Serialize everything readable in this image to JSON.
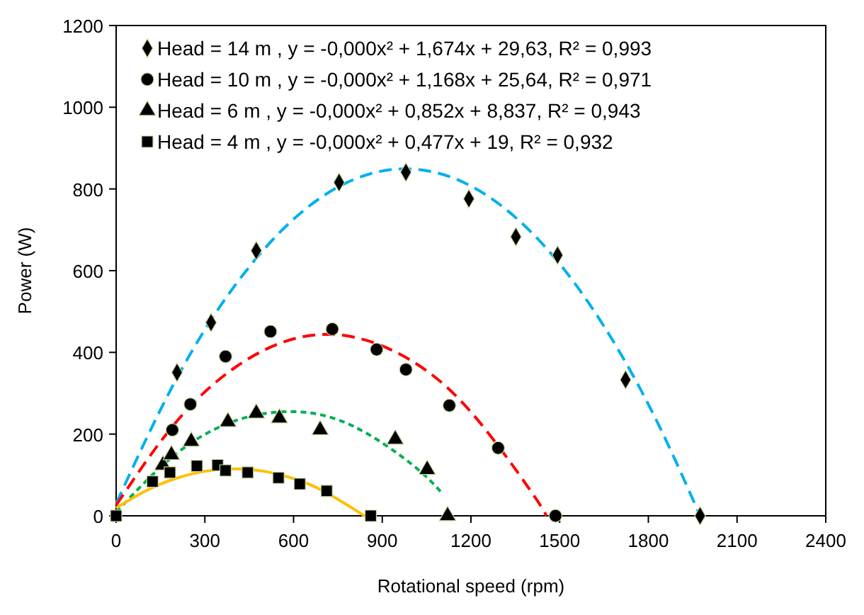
{
  "chart_data": {
    "type": "scatter",
    "xlabel": "Rotational speed (rpm)",
    "ylabel": "Power (W)",
    "xlim": [
      0,
      2400
    ],
    "xticks": [
      0,
      300,
      600,
      900,
      1200,
      1500,
      1800,
      2100,
      2400
    ],
    "ylim": [
      0,
      1200
    ],
    "yticks": [
      0,
      200,
      400,
      600,
      800,
      1000,
      1200
    ],
    "grid": false,
    "legend": "top left",
    "series": [
      {
        "name": "Head = 14 m , y = -0,000x² + 1,674x + 29,63, R² = 0,993",
        "marker": "diamond",
        "color": "#000000",
        "x": [
          206,
          321,
          474,
          754,
          980,
          1193,
          1352,
          1493,
          1723,
          1975
        ],
        "values": [
          351,
          473,
          649,
          816,
          841,
          776,
          683,
          638,
          333,
          0
        ]
      },
      {
        "name": "Head = 10 m  , y = -0,000x² + 1,168x + 25,64, R² = 0,971",
        "marker": "circle",
        "color": "#000000",
        "x": [
          190,
          251,
          370,
          522,
          731,
          881,
          980,
          1127,
          1292,
          1486
        ],
        "values": [
          210,
          273,
          390,
          451,
          457,
          407,
          358,
          270,
          166,
          0
        ]
      },
      {
        "name": "Head = 6 m  , y = -0,000x² + 0,852x + 8,837, R² = 0,943",
        "marker": "triangle",
        "color": "#000000",
        "x": [
          158,
          187,
          254,
          378,
          474,
          552,
          690,
          944,
          1052,
          1121
        ],
        "values": [
          124,
          149,
          182,
          230,
          251,
          239,
          210,
          187,
          113,
          0
        ]
      },
      {
        "name": "Head = 4 m , y = -0,000x² + 0,477x + 19, R² = 0,932",
        "marker": "square",
        "color": "#000000",
        "x": [
          0,
          123,
          182,
          273,
          343,
          370,
          445,
          549,
          621,
          712,
          861
        ],
        "values": [
          0,
          84,
          106,
          122,
          124,
          111,
          106,
          93,
          78,
          61,
          0
        ]
      },
      {
        "type": "line",
        "color": "#00b0f0",
        "line_style": "dashed",
        "x": [
          0,
          200,
          400,
          600,
          800,
          1000,
          1200,
          1400,
          1600,
          1800,
          1975
        ],
        "values": [
          30,
          330,
          562,
          726,
          822,
          849,
          807,
          697,
          519,
          273,
          0
        ]
      },
      {
        "type": "line",
        "color": "#ff0000",
        "line_style": "dashed",
        "x": [
          0,
          200,
          400,
          600,
          800,
          1000,
          1200,
          1400,
          1455
        ],
        "values": [
          26,
          227,
          362,
          433,
          438,
          379,
          254,
          63,
          0
        ]
      },
      {
        "type": "line",
        "color": "#00b050",
        "line_style": "dotted",
        "x": [
          0,
          200,
          400,
          600,
          800,
          1000,
          1100
        ],
        "values": [
          9,
          150,
          232,
          255,
          220,
          126,
          57
        ]
      },
      {
        "type": "line",
        "color": "#ffc000",
        "line_style": "solid",
        "x": [
          0,
          100,
          200,
          300,
          400,
          500,
          600,
          700,
          840
        ],
        "values": [
          19,
          61,
          91,
          109,
          115,
          109,
          91,
          61,
          0
        ]
      }
    ]
  }
}
